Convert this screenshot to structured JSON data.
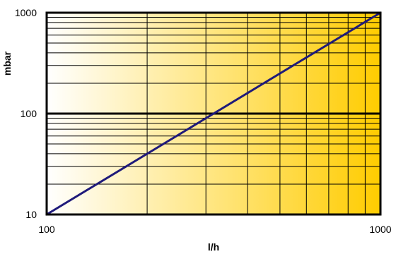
{
  "chart_data": {
    "type": "line",
    "title": "",
    "xlabel": "l/h",
    "ylabel": "mbar",
    "x_scale": "log",
    "y_scale": "log",
    "xlim": [
      100,
      1000
    ],
    "ylim": [
      10,
      1000
    ],
    "x_tick_labels": [
      "100",
      "1000"
    ],
    "y_tick_labels": [
      "10",
      "100",
      "1000"
    ],
    "x_ticks": [
      100,
      1000
    ],
    "y_ticks": [
      10,
      100,
      1000
    ],
    "grid": true,
    "legend": "none",
    "background_gradient": {
      "from": "#ffffff",
      "to": "#ffcc00",
      "direction": "left-to-right"
    },
    "series": [
      {
        "line_color": "#1f1a7a",
        "x": [
          100,
          1000
        ],
        "y": [
          10,
          1000
        ]
      }
    ]
  }
}
